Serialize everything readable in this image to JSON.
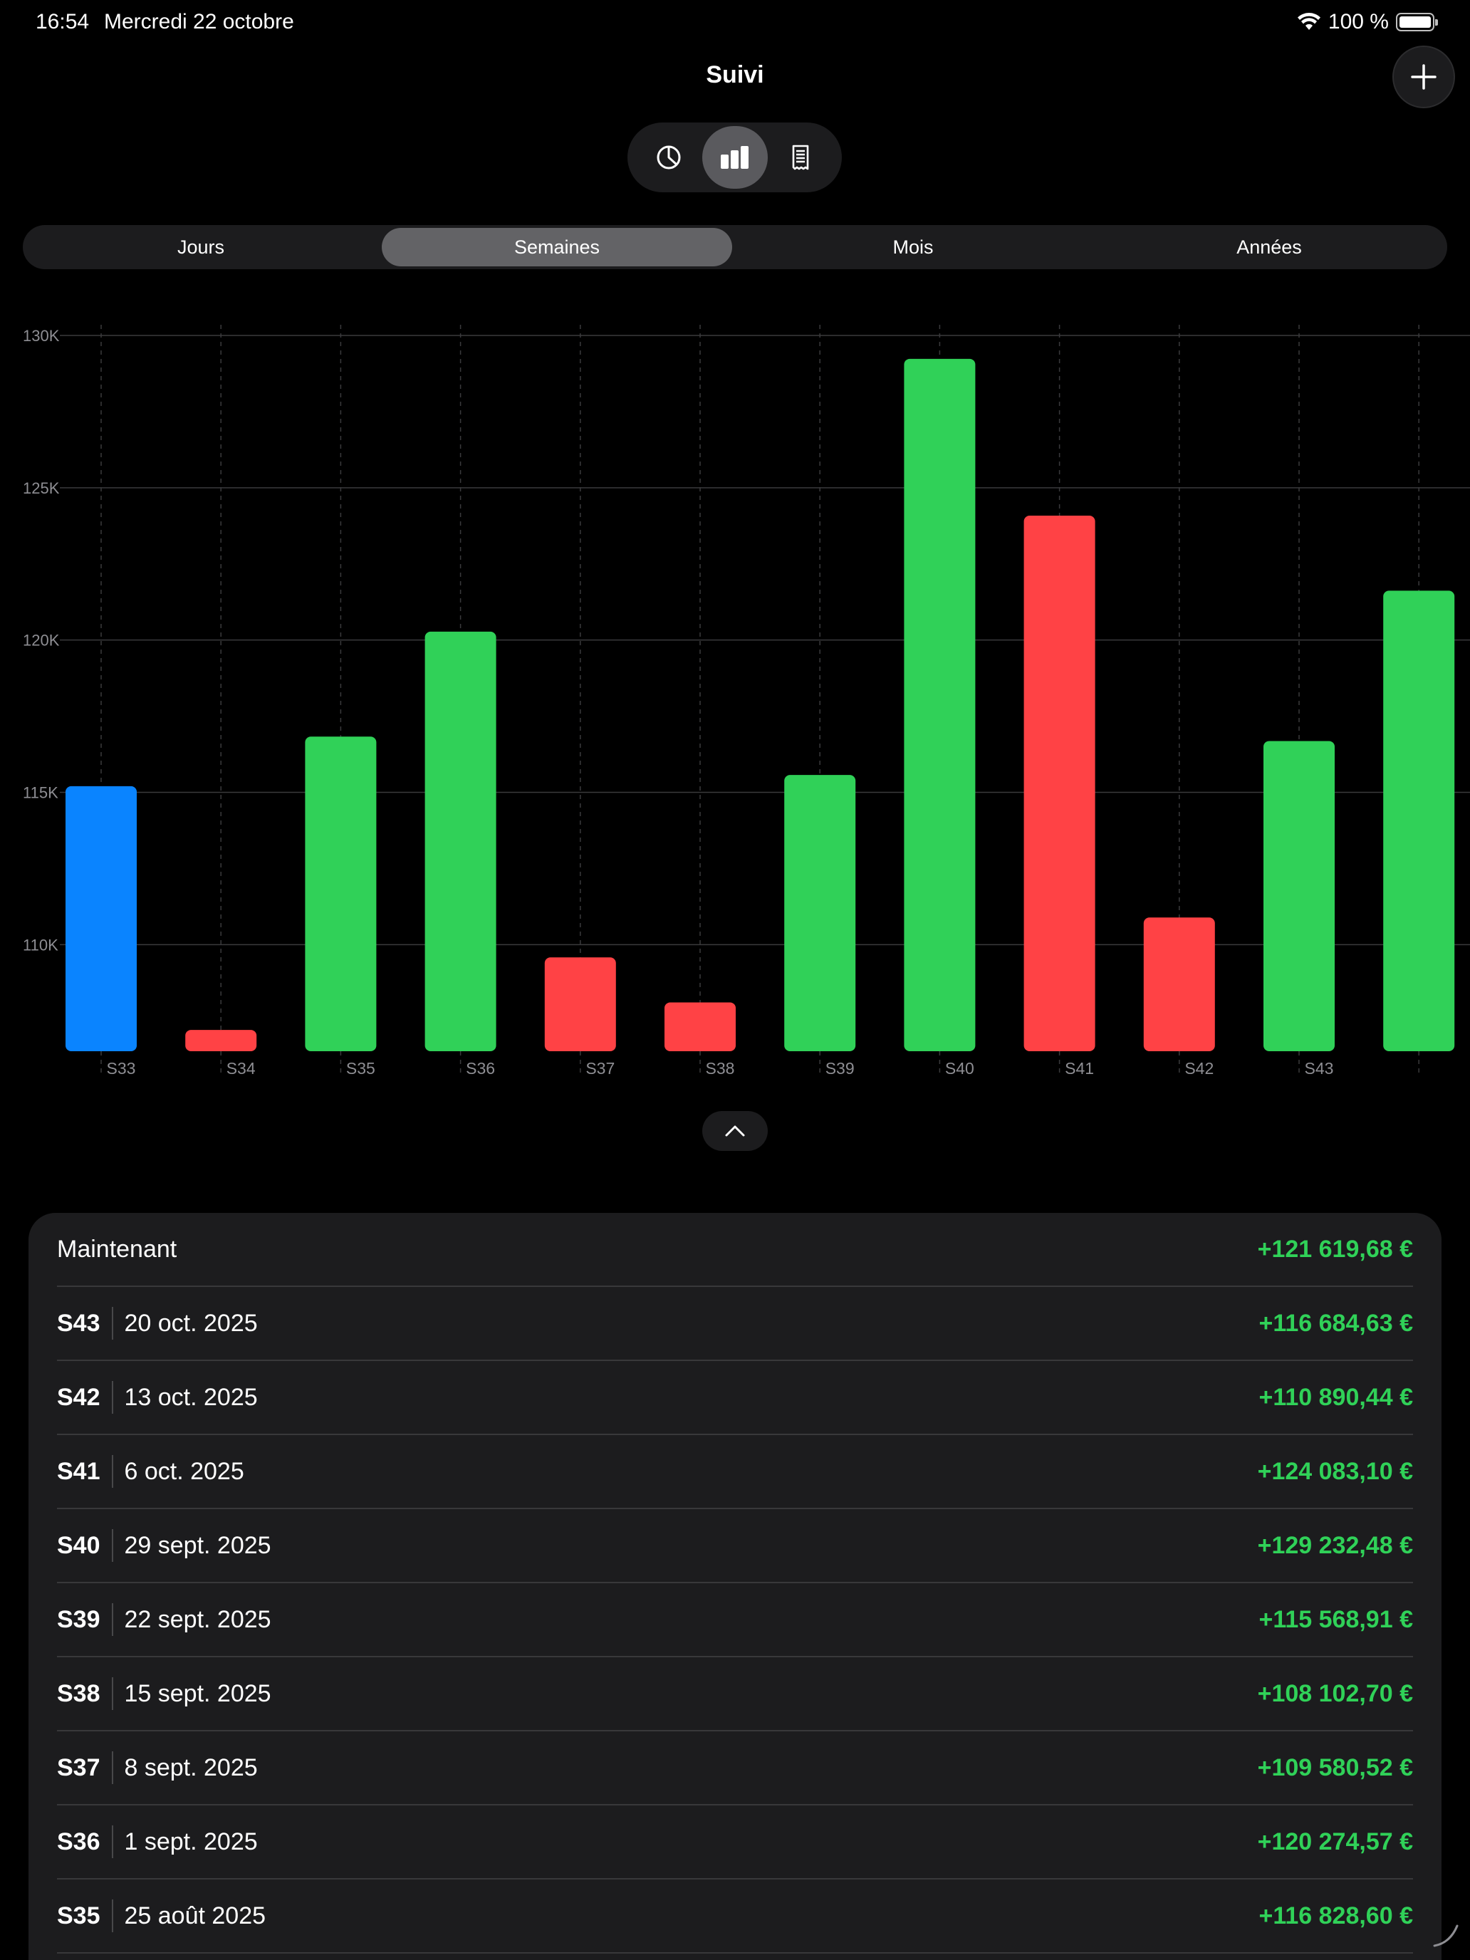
{
  "status_bar": {
    "time": "16:54",
    "date": "Mercredi 22 octobre",
    "battery_text": "100 %",
    "icons": [
      "wifi-icon",
      "battery-icon"
    ]
  },
  "header": {
    "title": "Suivi",
    "add_icon": "plus-icon"
  },
  "view_switch": {
    "items": [
      {
        "icon": "pie-chart-icon",
        "active": false
      },
      {
        "icon": "bar-chart-icon",
        "active": true
      },
      {
        "icon": "receipt-icon",
        "active": false
      }
    ]
  },
  "periods": {
    "items": [
      "Jours",
      "Semaines",
      "Mois",
      "Années"
    ],
    "selected": "Semaines"
  },
  "colors": {
    "positive": "#30d158",
    "negative": "#ff4245",
    "baseline": "#0a84ff",
    "panel": "#1c1c1e"
  },
  "chart_data": {
    "type": "bar",
    "categories": [
      "S33",
      "S34",
      "S35",
      "S36",
      "S37",
      "S38",
      "S39",
      "S40",
      "S41",
      "S42",
      "S43",
      ""
    ],
    "values": [
      115200,
      107200,
      116828.6,
      120274.57,
      109580.52,
      108102.7,
      115568.91,
      129232.48,
      124083.1,
      110890.44,
      116684.63,
      121619.68
    ],
    "bar_colors": [
      "#0a84ff",
      "#ff4245",
      "#30d158",
      "#30d158",
      "#ff4245",
      "#ff4245",
      "#30d158",
      "#30d158",
      "#ff4245",
      "#ff4245",
      "#30d158",
      "#30d158"
    ],
    "y_ticks": [
      110000,
      115000,
      120000,
      125000,
      130000
    ],
    "y_tick_labels": [
      "110K",
      "115K",
      "120K",
      "125K",
      "130K"
    ],
    "ylim": [
      106500,
      130000
    ],
    "grid": true,
    "title": "",
    "xlabel": "",
    "ylabel": ""
  },
  "collapse_icon": "chevron-up-icon",
  "list": {
    "rows": [
      {
        "week": "",
        "date": "",
        "label": "Maintenant",
        "amount": "+121 619,68 €"
      },
      {
        "week": "S43",
        "date": "20 oct. 2025",
        "label": "",
        "amount": "+116 684,63 €"
      },
      {
        "week": "S42",
        "date": "13 oct. 2025",
        "label": "",
        "amount": "+110 890,44 €"
      },
      {
        "week": "S41",
        "date": "6 oct. 2025",
        "label": "",
        "amount": "+124 083,10 €"
      },
      {
        "week": "S40",
        "date": "29 sept. 2025",
        "label": "",
        "amount": "+129 232,48 €"
      },
      {
        "week": "S39",
        "date": "22 sept. 2025",
        "label": "",
        "amount": "+115 568,91 €"
      },
      {
        "week": "S38",
        "date": "15 sept. 2025",
        "label": "",
        "amount": "+108 102,70 €"
      },
      {
        "week": "S37",
        "date": "8 sept. 2025",
        "label": "",
        "amount": "+109 580,52 €"
      },
      {
        "week": "S36",
        "date": "1 sept. 2025",
        "label": "",
        "amount": "+120 274,57 €"
      },
      {
        "week": "S35",
        "date": "25 août 2025",
        "label": "",
        "amount": "+116 828,60 €"
      }
    ]
  }
}
